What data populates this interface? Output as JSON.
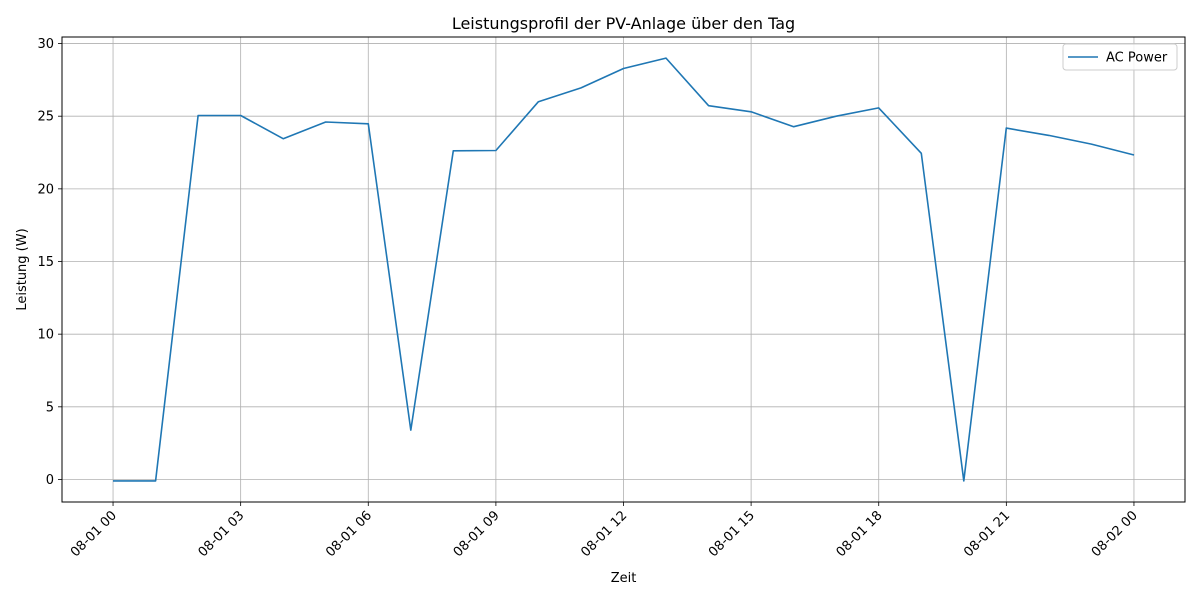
{
  "chart_data": {
    "type": "line",
    "title": "Leistungsprofil der PV-Anlage über den Tag",
    "xlabel": "Zeit",
    "ylabel": "Leistung (W)",
    "x": [
      "2023-08-01 00:00",
      "2023-08-01 01:00",
      "2023-08-01 02:00",
      "2023-08-01 03:00",
      "2023-08-01 04:00",
      "2023-08-01 05:00",
      "2023-08-01 06:00",
      "2023-08-01 07:00",
      "2023-08-01 08:00",
      "2023-08-01 09:00",
      "2023-08-01 10:00",
      "2023-08-01 11:00",
      "2023-08-01 12:00",
      "2023-08-01 13:00",
      "2023-08-01 14:00",
      "2023-08-01 15:00",
      "2023-08-01 16:00",
      "2023-08-01 17:00",
      "2023-08-01 18:00",
      "2023-08-01 19:00",
      "2023-08-01 20:00",
      "2023-08-01 21:00",
      "2023-08-01 22:00",
      "2023-08-01 23:00",
      "2023-08-02 00:00"
    ],
    "series": [
      {
        "name": "AC Power",
        "color": "#1f77b4",
        "values": [
          -0.1,
          -0.1,
          25.05,
          25.05,
          23.45,
          24.6,
          24.48,
          3.4,
          22.62,
          22.64,
          26.0,
          26.95,
          28.28,
          29.0,
          25.72,
          25.3,
          24.28,
          25.0,
          25.57,
          22.45,
          -0.1,
          24.18,
          23.68,
          23.08,
          22.33
        ]
      }
    ],
    "xticks": [
      "08-01 00",
      "08-01 03",
      "08-01 06",
      "08-01 09",
      "08-01 12",
      "08-01 15",
      "08-01 18",
      "08-01 21",
      "08-02 00"
    ],
    "xtick_hours": [
      0,
      3,
      6,
      9,
      12,
      15,
      18,
      21,
      24
    ],
    "yticks": [
      0,
      5,
      10,
      15,
      20,
      25,
      30
    ],
    "ylim": [
      -1.55,
      30.45
    ],
    "xlim_hours": [
      -1.2,
      25.2
    ],
    "grid": true,
    "legend": "upper right"
  }
}
